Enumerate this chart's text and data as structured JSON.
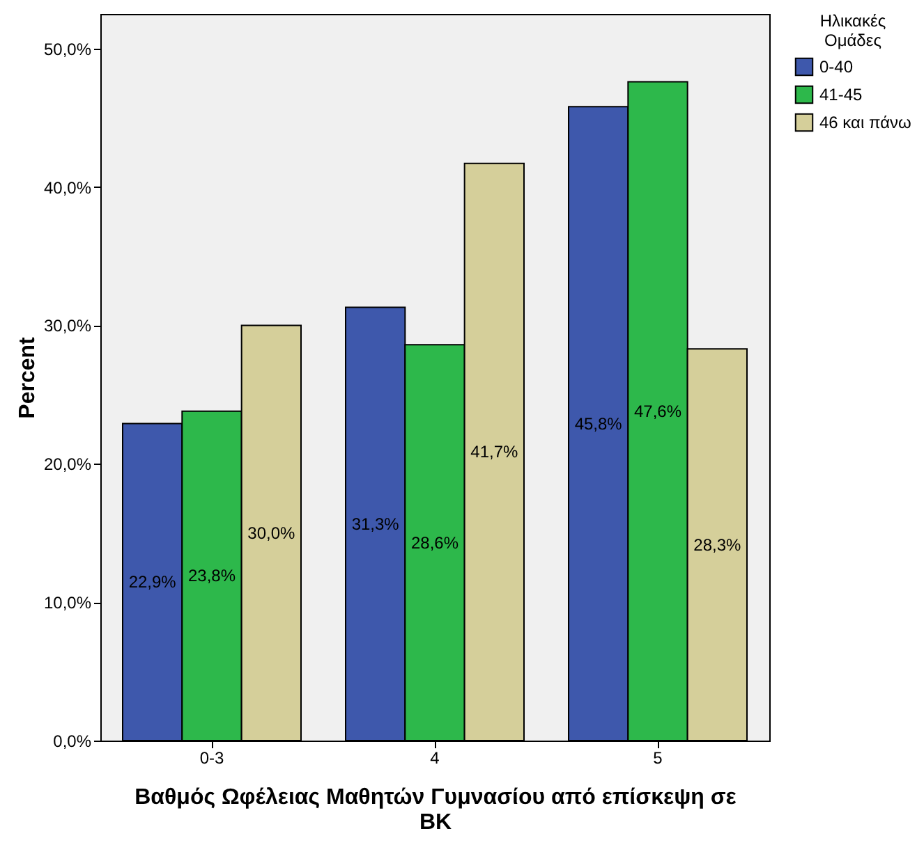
{
  "chart_data": {
    "type": "bar",
    "xlabel": "Βαθμός Ωφέλειας Μαθητών Γυμνασίου από επίσκεψη σε ΒΚ",
    "ylabel": "Percent",
    "legend_title": "Ηλικακές Ομάδες",
    "legend": "top right",
    "categories": [
      "0-3",
      "4",
      "5"
    ],
    "series": [
      {
        "name": "0-40",
        "color": "#3e58ac",
        "values": [
          22.9,
          31.3,
          45.8
        ],
        "value_labels": [
          "22,9%",
          "31,3%",
          "45,8%"
        ]
      },
      {
        "name": "41-45",
        "color": "#2db84b",
        "values": [
          23.8,
          28.6,
          47.6
        ],
        "value_labels": [
          "23,8%",
          "28,6%",
          "47,6%"
        ]
      },
      {
        "name": "46 και πάνω",
        "color": "#d5cf9a",
        "values": [
          30.0,
          41.7,
          28.3
        ],
        "value_labels": [
          "30,0%",
          "41,7%",
          "28,3%"
        ]
      }
    ],
    "ylim": [
      0,
      52.5
    ],
    "yticks": [
      {
        "value": 0,
        "label": "0,0%"
      },
      {
        "value": 10,
        "label": "10,0%"
      },
      {
        "value": 20,
        "label": "20,0%"
      },
      {
        "value": 30,
        "label": "30,0%"
      },
      {
        "value": 40,
        "label": "40,0%"
      },
      {
        "value": 50,
        "label": "50,0%"
      }
    ]
  }
}
